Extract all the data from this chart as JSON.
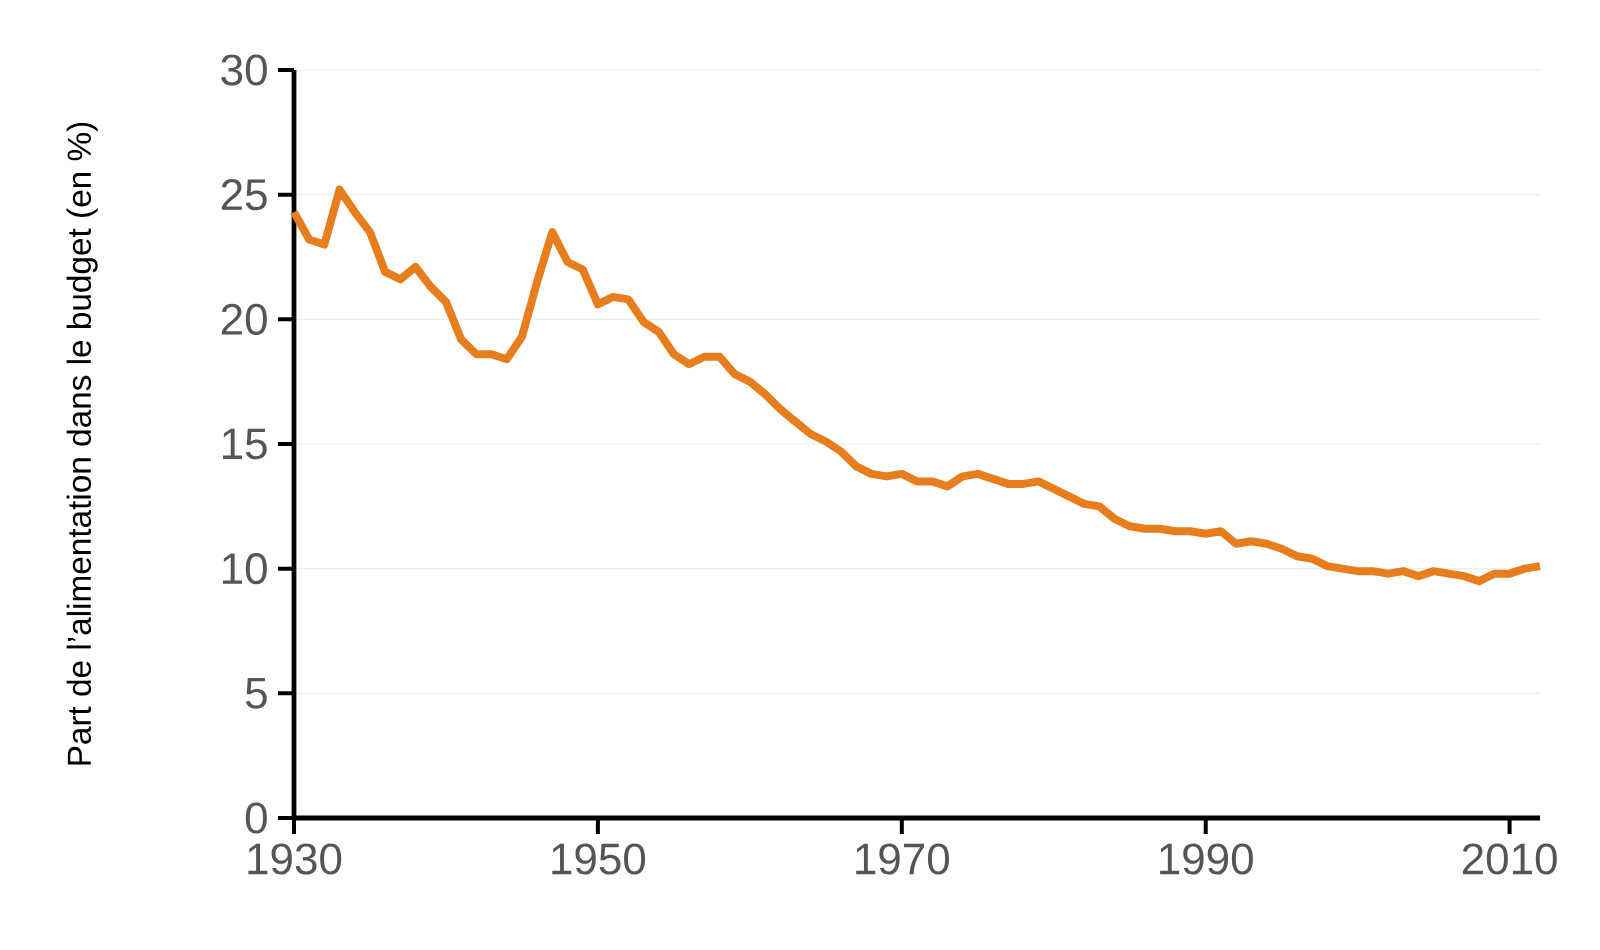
{
  "chart_data": {
    "type": "line",
    "ylabel": "Part de l’alimentation dans le budget (en %)",
    "x": [
      1930,
      1931,
      1932,
      1933,
      1934,
      1935,
      1936,
      1937,
      1938,
      1939,
      1940,
      1941,
      1942,
      1943,
      1944,
      1945,
      1946,
      1947,
      1948,
      1949,
      1950,
      1951,
      1952,
      1953,
      1954,
      1955,
      1956,
      1957,
      1958,
      1959,
      1960,
      1961,
      1962,
      1963,
      1964,
      1965,
      1966,
      1967,
      1968,
      1969,
      1970,
      1971,
      1972,
      1973,
      1974,
      1975,
      1976,
      1977,
      1978,
      1979,
      1980,
      1981,
      1982,
      1983,
      1984,
      1985,
      1986,
      1987,
      1988,
      1989,
      1990,
      1991,
      1992,
      1993,
      1994,
      1995,
      1996,
      1997,
      1998,
      1999,
      2000,
      2001,
      2002,
      2003,
      2004,
      2005,
      2006,
      2007,
      2008,
      2009,
      2010,
      2011,
      2012
    ],
    "series": [
      {
        "color": "#e87d1e",
        "values": [
          24.3,
          23.2,
          23.0,
          25.2,
          24.3,
          23.5,
          21.9,
          21.6,
          22.1,
          21.3,
          20.7,
          19.2,
          18.6,
          18.6,
          18.4,
          19.3,
          21.5,
          23.5,
          22.3,
          22.0,
          20.6,
          20.9,
          20.8,
          19.9,
          19.5,
          18.6,
          18.2,
          18.5,
          18.5,
          17.8,
          17.5,
          17.0,
          16.4,
          15.9,
          15.4,
          15.1,
          14.7,
          14.1,
          13.8,
          13.7,
          13.8,
          13.5,
          13.5,
          13.3,
          13.7,
          13.8,
          13.6,
          13.4,
          13.4,
          13.5,
          13.2,
          12.9,
          12.6,
          12.5,
          12.0,
          11.7,
          11.6,
          11.6,
          11.5,
          11.5,
          11.4,
          11.5,
          11.0,
          11.1,
          11.0,
          10.8,
          10.5,
          10.4,
          10.1,
          10.0,
          9.9,
          9.9,
          9.8,
          9.9,
          9.7,
          9.9,
          9.8,
          9.7,
          9.5,
          9.8,
          9.8,
          10.0,
          10.1
        ]
      }
    ],
    "xlim": [
      1930,
      2012
    ],
    "ylim": [
      0,
      30
    ],
    "xticks": [
      1930,
      1950,
      1970,
      1990,
      2010
    ],
    "yticks": [
      0,
      5,
      10,
      15,
      20,
      25,
      30
    ],
    "grid": "y",
    "marker": "none",
    "line_style": "solid"
  }
}
